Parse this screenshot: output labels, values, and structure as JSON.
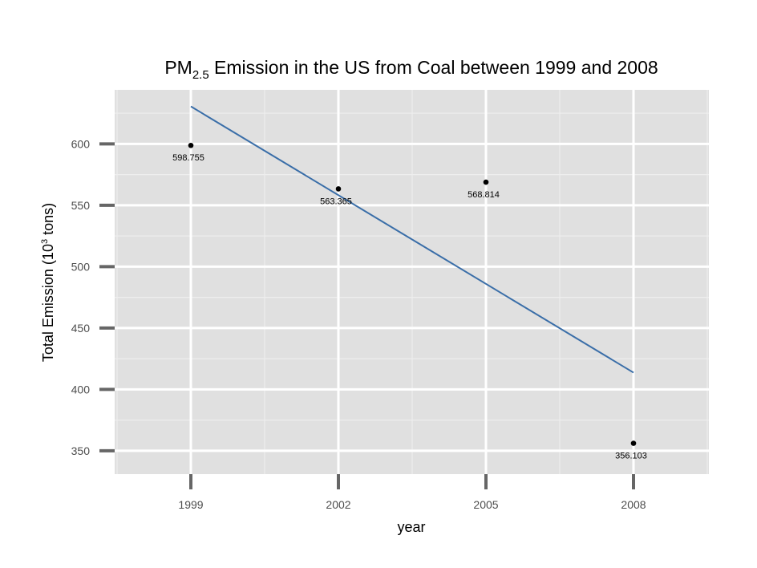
{
  "chart_data": {
    "type": "scatter",
    "title": {
      "prefix": "PM",
      "subscript": "2.5",
      "rest": " Emission in the US from Coal between 1999 and 2008"
    },
    "xlabel": "year",
    "ylabel": {
      "prefix": "Total Emission (10",
      "superscript": "3",
      "suffix": " tons)"
    },
    "x_categories": [
      "1999",
      "2002",
      "2005",
      "2008"
    ],
    "y_ticks": [
      350,
      400,
      450,
      500,
      550,
      600
    ],
    "ylim": [
      331,
      644
    ],
    "grid": true,
    "points": [
      {
        "x": "1999",
        "y": 598.755,
        "label": "598.755"
      },
      {
        "x": "2002",
        "y": 563.365,
        "label": "563.365"
      },
      {
        "x": "2005",
        "y": 568.814,
        "label": "568.814"
      },
      {
        "x": "2008",
        "y": 356.103,
        "label": "356.103"
      }
    ],
    "trend_line": {
      "type": "linear",
      "color": "#3a6ea8",
      "start": {
        "x": "1999",
        "y": 630.5
      },
      "end": {
        "x": "2008",
        "y": 413.7
      }
    },
    "colors": {
      "panel_background": "#e0e0e0",
      "grid_major": "#ffffff",
      "grid_minor": "#eeeeee",
      "tick_marks": "#666666",
      "points": "#000000"
    }
  }
}
